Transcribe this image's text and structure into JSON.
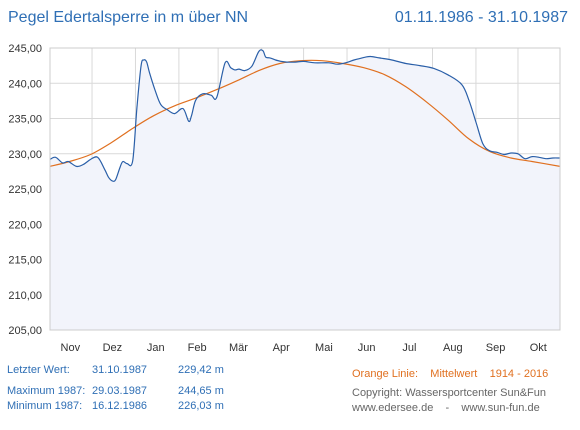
{
  "header": {
    "title": "Pegel Edertalsperre in m über NN",
    "period": "01.11.1986 - 31.10.1987"
  },
  "stats": {
    "last": {
      "label": "Letzter Wert:",
      "date": "31.10.1987",
      "value": "229,42 m"
    },
    "max": {
      "label": "Maximum 1987:",
      "date": "29.03.1987",
      "value": "244,65 m"
    },
    "min": {
      "label": "Minimum  1987:",
      "date": "16.12.1986",
      "value": "226,03 m"
    }
  },
  "legend": {
    "label": "Orange Linie:",
    "series": "Mittelwert",
    "range": "1914 - 2016",
    "copyright": "Copyright: Wassersportcenter Sun&Fun",
    "sites": "www.edersee.de    -    www.sun-fun.de"
  },
  "colors": {
    "level_line": "#2a5fa8",
    "mean_line": "#e07020",
    "fill": "#f2f4fb",
    "grid": "#d9d9d9",
    "text_blue": "#2f6fb5"
  },
  "chart_data": {
    "type": "line",
    "xlabel": "",
    "ylabel": "",
    "x_unit": "day of hydrological year (1 = 01.11.1986)",
    "x_range": [
      1,
      365
    ],
    "ylim": [
      205,
      245
    ],
    "yticks": [
      "205,00",
      "210,00",
      "215,00",
      "220,00",
      "225,00",
      "230,00",
      "235,00",
      "240,00",
      "245,00"
    ],
    "months": [
      {
        "label": "Nov",
        "center": 15.5
      },
      {
        "label": "Dez",
        "center": 45.5
      },
      {
        "label": "Jan",
        "center": 76.5
      },
      {
        "label": "Feb",
        "center": 106
      },
      {
        "label": "Mär",
        "center": 135.5
      },
      {
        "label": "Apr",
        "center": 166
      },
      {
        "label": "Mai",
        "center": 196.5
      },
      {
        "label": "Jun",
        "center": 227
      },
      {
        "label": "Jul",
        "center": 257.5
      },
      {
        "label": "Aug",
        "center": 288.5
      },
      {
        "label": "Sep",
        "center": 319
      },
      {
        "label": "Okt",
        "center": 349.5
      }
    ],
    "series": [
      {
        "key": "level",
        "x": [
          1,
          5,
          10,
          14,
          20,
          25,
          30,
          35,
          40,
          43,
          46,
          48,
          51,
          53,
          56,
          60,
          63,
          66,
          68,
          70,
          72,
          76,
          80,
          85,
          90,
          96,
          100,
          102,
          105,
          110,
          116,
          120,
          126,
          130,
          133,
          136,
          140,
          145,
          150,
          153,
          155,
          158,
          162,
          166,
          170,
          176,
          182,
          190,
          200,
          206,
          212,
          218,
          222,
          226,
          230,
          236,
          245,
          255,
          265,
          275,
          285,
          295,
          300,
          305,
          310,
          315,
          320,
          325,
          330,
          335,
          340,
          345,
          350,
          355,
          360,
          365
        ],
        "y": [
          229.2,
          229.5,
          228.7,
          228.9,
          228.2,
          228.5,
          229.2,
          229.5,
          227.8,
          226.6,
          226.1,
          226.4,
          228.1,
          228.9,
          228.6,
          229.0,
          236.5,
          242.5,
          243.3,
          243.0,
          241.5,
          239.0,
          237.0,
          236.2,
          235.7,
          236.4,
          234.6,
          235.4,
          237.6,
          238.5,
          238.3,
          238.0,
          242.9,
          242.2,
          241.9,
          242.0,
          241.8,
          242.4,
          244.5,
          244.6,
          243.7,
          243.6,
          243.3,
          243.1,
          243.0,
          243.0,
          243.1,
          242.9,
          242.9,
          242.7,
          242.9,
          243.3,
          243.5,
          243.7,
          243.8,
          243.6,
          243.3,
          242.8,
          242.5,
          242.1,
          241.2,
          239.8,
          237.6,
          234.5,
          231.4,
          230.4,
          230.2,
          229.9,
          230.1,
          230.0,
          229.3,
          229.6,
          229.5,
          229.3,
          229.4,
          229.4
        ]
      },
      {
        "key": "mittelwert",
        "x": [
          1,
          15,
          30,
          45,
          60,
          75,
          90,
          105,
          120,
          135,
          150,
          165,
          180,
          195,
          210,
          225,
          240,
          255,
          270,
          285,
          300,
          315,
          330,
          345,
          365
        ],
        "y": [
          228.2,
          228.9,
          229.9,
          231.6,
          233.6,
          235.4,
          236.8,
          237.9,
          239.1,
          240.4,
          241.8,
          242.8,
          243.2,
          243.2,
          242.8,
          242.2,
          241.2,
          239.5,
          237.3,
          234.8,
          232.1,
          230.3,
          229.4,
          228.9,
          228.2
        ]
      }
    ]
  }
}
